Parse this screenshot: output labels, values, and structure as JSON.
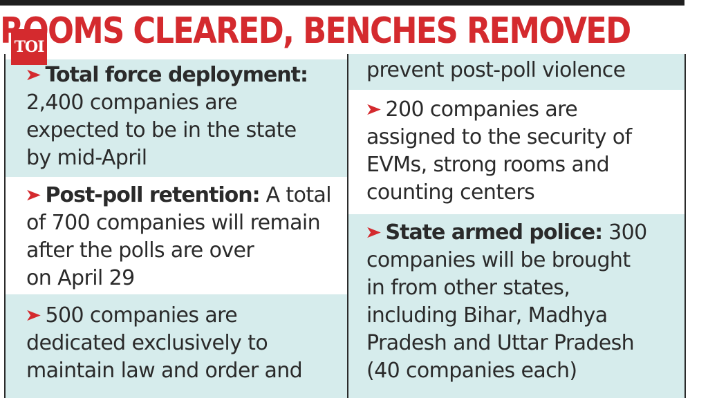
{
  "headline": "ROOMS CLEARED, BENCHES REMOVED",
  "logo": "TOI",
  "colors": {
    "accent": "#d42a2e",
    "shaded_cell": "#d6ecec",
    "border": "#2b2b2b"
  },
  "icons": [
    "arrow-bullet-icon"
  ],
  "left_column": {
    "item1": {
      "lead": "Total force deployment:",
      "line1": "2,400 companies are",
      "line2": "expected to be in the state",
      "line3": "by mid-April"
    },
    "item2": {
      "lead": "Post-poll retention:",
      "rest": " A total",
      "line1": "of 700 companies will remain",
      "line2": "after the polls are over",
      "line3": "on April 29"
    },
    "item3": {
      "line0": "500 companies are",
      "line1": "dedicated exclusively to",
      "line2": "maintain law and order and"
    }
  },
  "right_column": {
    "item3_cont": {
      "line1": "prevent post-poll violence"
    },
    "item4": {
      "line0": "200 companies are",
      "line1": "assigned to the security of",
      "line2": "EVMs, strong rooms and",
      "line3": "counting centers"
    },
    "item5": {
      "lead": "State armed police:",
      "rest": " 300",
      "line1": "companies will be brought",
      "line2": "in from other states,",
      "line3": "including Bihar, Madhya",
      "line4": "Pradesh and Uttar Pradesh",
      "line5": "(40 companies each)"
    }
  }
}
